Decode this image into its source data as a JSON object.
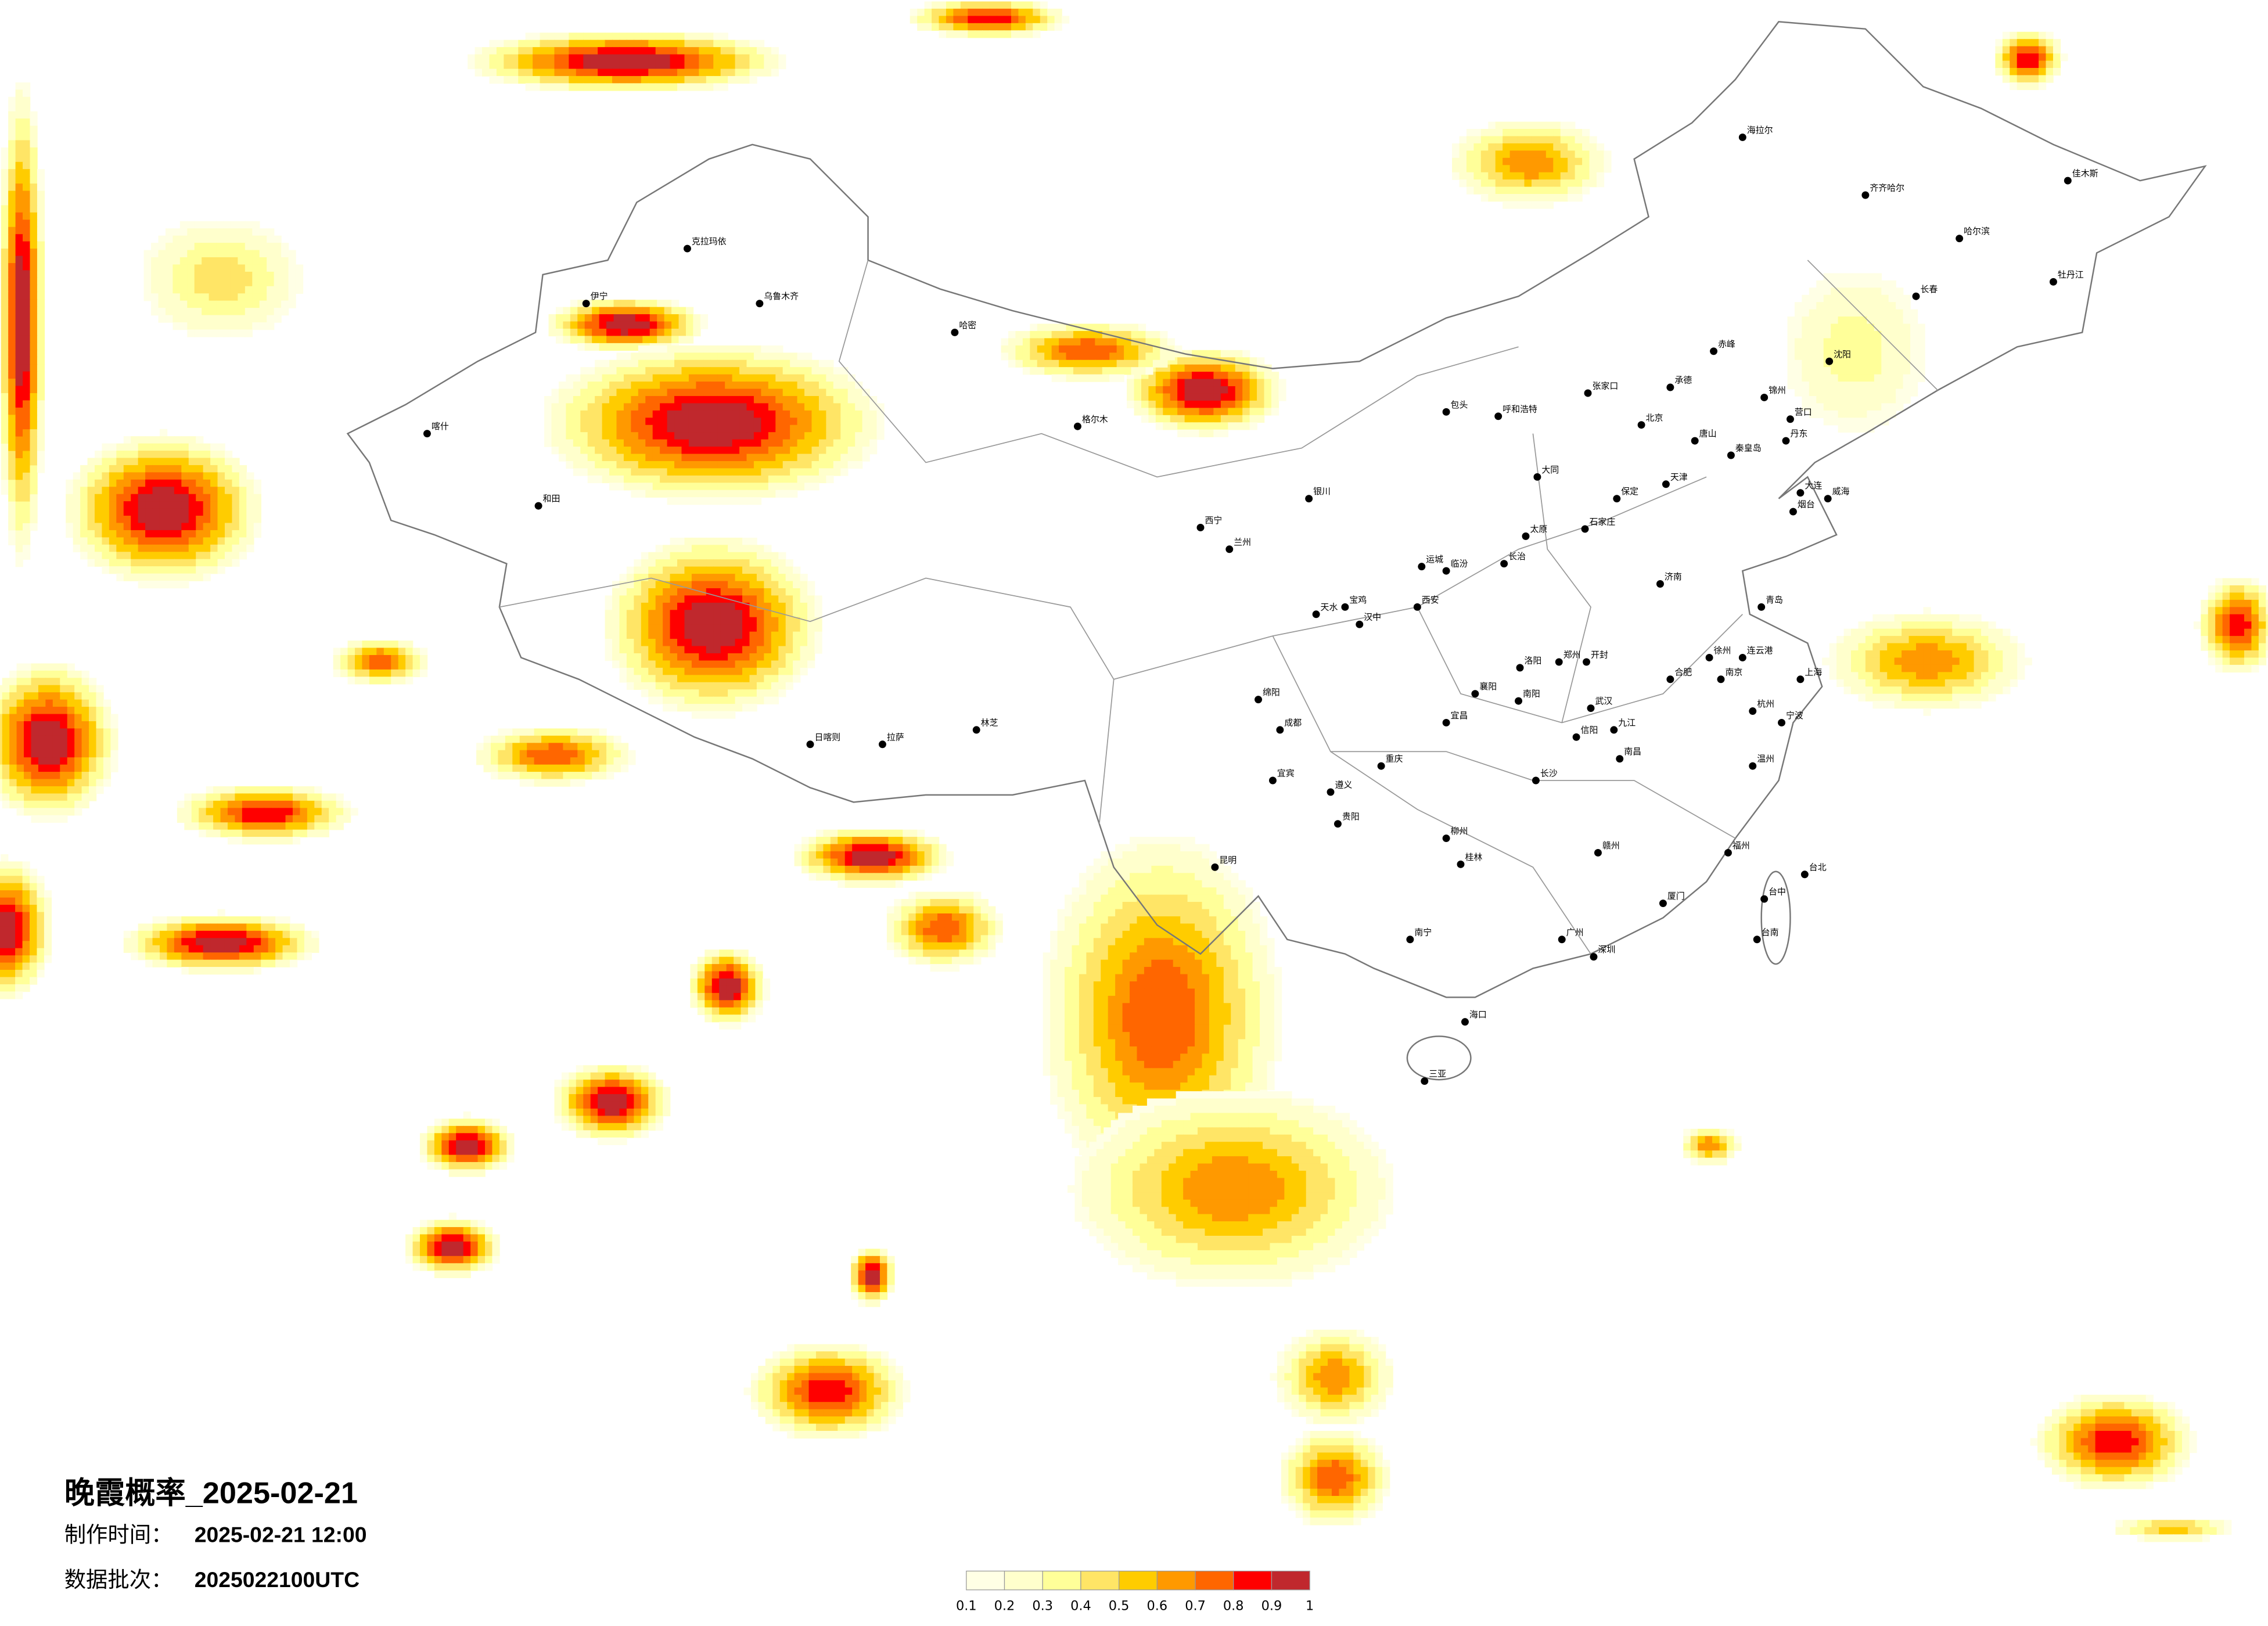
{
  "title": "晚霞概率_2025-02-21",
  "info": {
    "made_time_label": "制作时间：",
    "made_time_value": "2025-02-21 12:00",
    "batch_label": "数据批次：",
    "batch_value": "2025022100UTC"
  },
  "legend": {
    "labels": [
      "0.1",
      "0.2",
      "0.3",
      "0.4",
      "0.5",
      "0.6",
      "0.7",
      "0.8",
      "0.9",
      "1"
    ],
    "colors": [
      "#FFFFE5",
      "#FFFFCC",
      "#FFFF99",
      "#FFE566",
      "#FFCC00",
      "#FF9900",
      "#FF6600",
      "#FF0000",
      "#C0282D"
    ]
  },
  "cities": [
    "北京",
    "天津",
    "石家庄",
    "太原",
    "济南",
    "青岛",
    "郑州",
    "大连",
    "呼和浩特",
    "上海",
    "南京",
    "杭州",
    "武汉",
    "长沙",
    "广州",
    "深圳",
    "重庆",
    "成都",
    "西安",
    "兰州",
    "西宁",
    "乌鲁木齐",
    "拉萨",
    "昆明",
    "贵阳",
    "南宁",
    "海口",
    "哈尔滨",
    "长春",
    "沈阳",
    "台北",
    "福州",
    "厦门",
    "南昌",
    "合肥",
    "银川",
    "包头",
    "大同",
    "保定",
    "唐山",
    "秦皇岛",
    "烟台",
    "威海",
    "洛阳",
    "开封",
    "徐州",
    "连云港",
    "克拉玛依",
    "喀什",
    "和田",
    "伊宁",
    "哈密",
    "格尔木",
    "日喀则",
    "林芝",
    "齐齐哈尔",
    "海拉尔",
    "佳木斯",
    "牡丹江",
    "丹东",
    "赤峰",
    "张家口",
    "承德",
    "锦州",
    "营口",
    "三亚",
    "桂林",
    "柳州",
    "遵义",
    "宜宾",
    "绵阳",
    "汉中",
    "宝鸡",
    "天水",
    "临汾",
    "长治",
    "运城",
    "南阳",
    "信阳",
    "宜昌",
    "襄阳",
    "九江",
    "赣州",
    "温州",
    "宁波",
    "台中",
    "台南"
  ]
}
